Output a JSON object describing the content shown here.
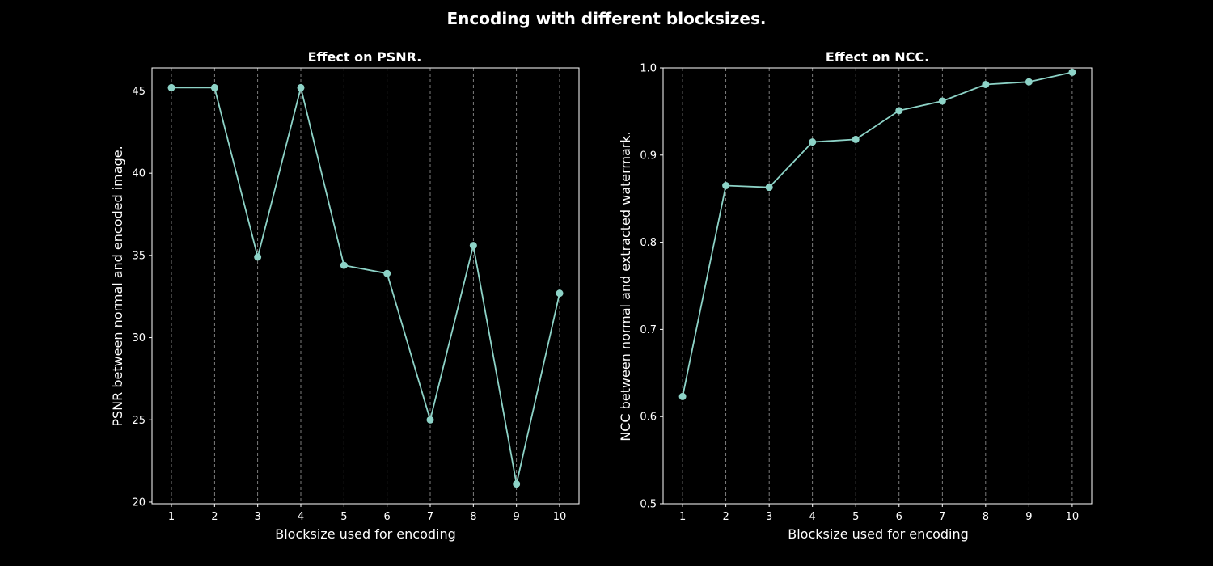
{
  "figure": {
    "suptitle": "Encoding with different blocksizes."
  },
  "chart_data": [
    {
      "type": "line",
      "title": "Effect on PSNR.",
      "xlabel": "Blocksize used for encoding",
      "ylabel": "PSNR between normal and encoded image.",
      "x": [
        1,
        2,
        3,
        4,
        5,
        6,
        7,
        8,
        9,
        10
      ],
      "y": [
        45.2,
        45.2,
        34.9,
        45.2,
        34.4,
        33.9,
        25.0,
        35.6,
        21.1,
        32.7
      ],
      "xlim": [
        0.55,
        10.45
      ],
      "ylim": [
        19.9,
        46.4
      ],
      "xticks": [
        1,
        2,
        3,
        4,
        5,
        6,
        7,
        8,
        9,
        10
      ],
      "yticks": [
        20,
        25,
        30,
        35,
        40,
        45
      ],
      "grid": "x-dashed",
      "marker": "circle",
      "color": "#8dd3c7"
    },
    {
      "type": "line",
      "title": "Effect on NCC.",
      "xlabel": "Blocksize used for encoding",
      "ylabel": "NCC between normal and extracted watermark.",
      "x": [
        1,
        2,
        3,
        4,
        5,
        6,
        7,
        8,
        9,
        10
      ],
      "y": [
        0.623,
        0.865,
        0.863,
        0.915,
        0.918,
        0.951,
        0.962,
        0.981,
        0.984,
        0.995
      ],
      "xlim": [
        0.55,
        10.45
      ],
      "ylim": [
        0.5,
        1.0
      ],
      "xticks": [
        1,
        2,
        3,
        4,
        5,
        6,
        7,
        8,
        9,
        10
      ],
      "yticks": [
        0.5,
        0.6,
        0.7,
        0.8,
        0.9,
        1.0
      ],
      "grid": "x-dashed",
      "marker": "circle",
      "color": "#8dd3c7"
    }
  ]
}
